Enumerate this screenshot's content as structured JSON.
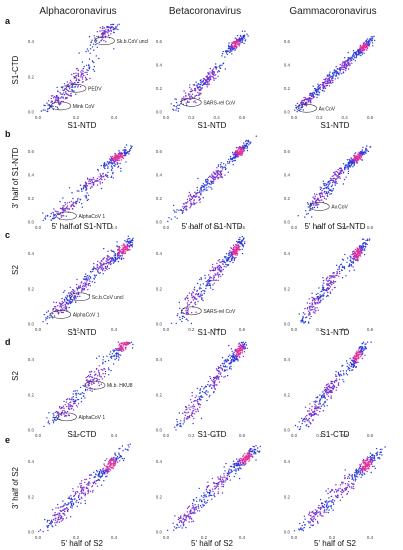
{
  "columns": [
    {
      "title": "Alphacoronavirus"
    },
    {
      "title": "Betacoronavirus"
    },
    {
      "title": "Gammacoronavirus"
    }
  ],
  "rows": [
    {
      "letter": "a",
      "ylabel": "S1-CTD",
      "xlabel": "S1-NTD"
    },
    {
      "letter": "b",
      "ylabel": "3' half of S1-NTD",
      "xlabel": "5' half of S1-NTD"
    },
    {
      "letter": "c",
      "ylabel": "S2",
      "xlabel": "S1-NTD"
    },
    {
      "letter": "d",
      "ylabel": "S2",
      "xlabel": "S1-CTD"
    },
    {
      "letter": "e",
      "ylabel": "3' half of S2",
      "xlabel": "5' half of S2"
    }
  ],
  "chart_data": [
    {
      "type": "scatter",
      "panel": "a-alpha",
      "x_ticks": [
        "0.0",
        "0.2",
        "0.4"
      ],
      "y_ticks": [
        "0.0",
        "0.2",
        "0.4"
      ],
      "clusters": [
        [
          0.12,
          0.08,
          0.05
        ],
        [
          0.2,
          0.18,
          0.06
        ],
        [
          0.35,
          0.45,
          0.05
        ],
        [
          0.45,
          0.55,
          0.04
        ]
      ],
      "annotations": [
        "Mink CoV",
        "PEDV",
        "Sk.b.CoV uncl"
      ]
    },
    {
      "type": "scatter",
      "panel": "a-beta",
      "x_ticks": [
        "0.0",
        "0.2",
        "0.4",
        "0.6"
      ],
      "y_ticks": [
        "0.0",
        "0.2",
        "0.4",
        "0.6"
      ],
      "clusters": [
        [
          0.2,
          0.15,
          0.08
        ],
        [
          0.35,
          0.3,
          0.06
        ],
        [
          0.55,
          0.58,
          0.04
        ]
      ],
      "annotations": [
        "SARS-rel CoV"
      ]
    },
    {
      "type": "scatter",
      "panel": "a-gamma",
      "x_ticks": [
        "0.0",
        "0.2",
        "0.4",
        "0.6"
      ],
      "y_ticks": [
        "0.0",
        "0.2",
        "0.4",
        "0.6"
      ],
      "clusters": [
        [
          0.1,
          0.1,
          0.05
        ],
        [
          0.25,
          0.25,
          0.05
        ],
        [
          0.4,
          0.4,
          0.05
        ],
        [
          0.55,
          0.55,
          0.04
        ]
      ],
      "annotations": [
        "Av.CoV"
      ]
    },
    {
      "type": "scatter",
      "panel": "b-alpha",
      "x_ticks": [
        "0.0",
        "0.2",
        "0.4"
      ],
      "y_ticks": [
        "0.0",
        "0.2",
        "0.4",
        "0.6"
      ],
      "clusters": [
        [
          0.15,
          0.12,
          0.06
        ],
        [
          0.3,
          0.35,
          0.06
        ],
        [
          0.42,
          0.55,
          0.04
        ]
      ],
      "annotations": [
        "AlphaCoV 1"
      ]
    },
    {
      "type": "scatter",
      "panel": "b-beta",
      "x_ticks": [
        "0.0",
        "0.2",
        "0.4",
        "0.6"
      ],
      "y_ticks": [
        "0.0",
        "0.2",
        "0.4",
        "0.6"
      ],
      "clusters": [
        [
          0.2,
          0.18,
          0.08
        ],
        [
          0.4,
          0.4,
          0.06
        ],
        [
          0.58,
          0.6,
          0.04
        ]
      ],
      "annotations": []
    },
    {
      "type": "scatter",
      "panel": "b-gamma",
      "x_ticks": [
        "0.0",
        "0.2",
        "0.4",
        "0.6"
      ],
      "y_ticks": [
        "0.0",
        "0.2",
        "0.4",
        "0.6"
      ],
      "clusters": [
        [
          0.2,
          0.2,
          0.06
        ],
        [
          0.35,
          0.4,
          0.06
        ],
        [
          0.5,
          0.55,
          0.04
        ]
      ],
      "annotations": [
        "Av.CoV"
      ]
    },
    {
      "type": "scatter",
      "panel": "c-alpha",
      "x_ticks": [
        "0.0",
        "0.2",
        "0.4"
      ],
      "y_ticks": [
        "0.0",
        "0.2",
        "0.4"
      ],
      "clusters": [
        [
          0.12,
          0.1,
          0.05
        ],
        [
          0.22,
          0.2,
          0.05
        ],
        [
          0.35,
          0.35,
          0.05
        ],
        [
          0.45,
          0.42,
          0.04
        ]
      ],
      "annotations": [
        "AlphaCoV 1",
        "Sc.b.CoV uncl"
      ]
    },
    {
      "type": "scatter",
      "panel": "c-beta",
      "x_ticks": [
        "0.0",
        "0.2",
        "0.4",
        "0.6"
      ],
      "y_ticks": [
        "0.0",
        "0.2",
        "0.4"
      ],
      "clusters": [
        [
          0.2,
          0.12,
          0.07
        ],
        [
          0.4,
          0.3,
          0.06
        ],
        [
          0.55,
          0.42,
          0.04
        ]
      ],
      "annotations": [
        "SARS-rel CoV"
      ]
    },
    {
      "type": "scatter",
      "panel": "c-gamma",
      "x_ticks": [
        "0.0",
        "0.2",
        "0.4",
        "0.6"
      ],
      "y_ticks": [
        "0.0",
        "0.2",
        "0.4"
      ],
      "clusters": [
        [
          0.15,
          0.1,
          0.06
        ],
        [
          0.3,
          0.25,
          0.06
        ],
        [
          0.5,
          0.4,
          0.04
        ]
      ],
      "annotations": []
    },
    {
      "type": "scatter",
      "panel": "d-alpha",
      "x_ticks": [
        "0.0",
        "0.2",
        "0.4"
      ],
      "y_ticks": [
        "0.0",
        "0.2",
        "0.4"
      ],
      "clusters": [
        [
          0.15,
          0.12,
          0.05
        ],
        [
          0.3,
          0.3,
          0.06
        ],
        [
          0.45,
          0.48,
          0.04
        ]
      ],
      "annotations": [
        "AlphaCoV 1",
        "Mi.b. HKU8"
      ]
    },
    {
      "type": "scatter",
      "panel": "d-beta",
      "x_ticks": [
        "0.0",
        "0.2",
        "0.4",
        "0.6"
      ],
      "y_ticks": [
        "0.0",
        "0.2",
        "0.4"
      ],
      "clusters": [
        [
          0.2,
          0.12,
          0.07
        ],
        [
          0.4,
          0.3,
          0.06
        ],
        [
          0.58,
          0.45,
          0.04
        ]
      ],
      "annotations": []
    },
    {
      "type": "scatter",
      "panel": "d-gamma",
      "x_ticks": [
        "0.0",
        "0.2",
        "0.4",
        "0.6"
      ],
      "y_ticks": [
        "0.0",
        "0.2",
        "0.4"
      ],
      "clusters": [
        [
          0.15,
          0.1,
          0.06
        ],
        [
          0.3,
          0.25,
          0.06
        ],
        [
          0.5,
          0.42,
          0.04
        ]
      ],
      "annotations": []
    },
    {
      "type": "scatter",
      "panel": "e-alpha",
      "x_ticks": [
        "0.0",
        "0.2",
        "0.4"
      ],
      "y_ticks": [
        "0.0",
        "0.2",
        "0.4"
      ],
      "clusters": [
        [
          0.12,
          0.1,
          0.05
        ],
        [
          0.25,
          0.25,
          0.06
        ],
        [
          0.38,
          0.38,
          0.04
        ]
      ],
      "annotations": []
    },
    {
      "type": "scatter",
      "panel": "e-beta",
      "x_ticks": [
        "0.0",
        "0.2",
        "0.4"
      ],
      "y_ticks": [
        "0.0",
        "0.2",
        "0.4"
      ],
      "clusters": [
        [
          0.12,
          0.1,
          0.05
        ],
        [
          0.28,
          0.28,
          0.06
        ],
        [
          0.42,
          0.42,
          0.04
        ]
      ],
      "annotations": []
    },
    {
      "type": "scatter",
      "panel": "e-gamma",
      "x_ticks": [
        "0.0",
        "0.2",
        "0.4"
      ],
      "y_ticks": [
        "0.0",
        "0.2",
        "0.4"
      ],
      "clusters": [
        [
          0.12,
          0.1,
          0.05
        ],
        [
          0.25,
          0.25,
          0.06
        ],
        [
          0.38,
          0.38,
          0.04
        ]
      ],
      "annotations": []
    }
  ]
}
